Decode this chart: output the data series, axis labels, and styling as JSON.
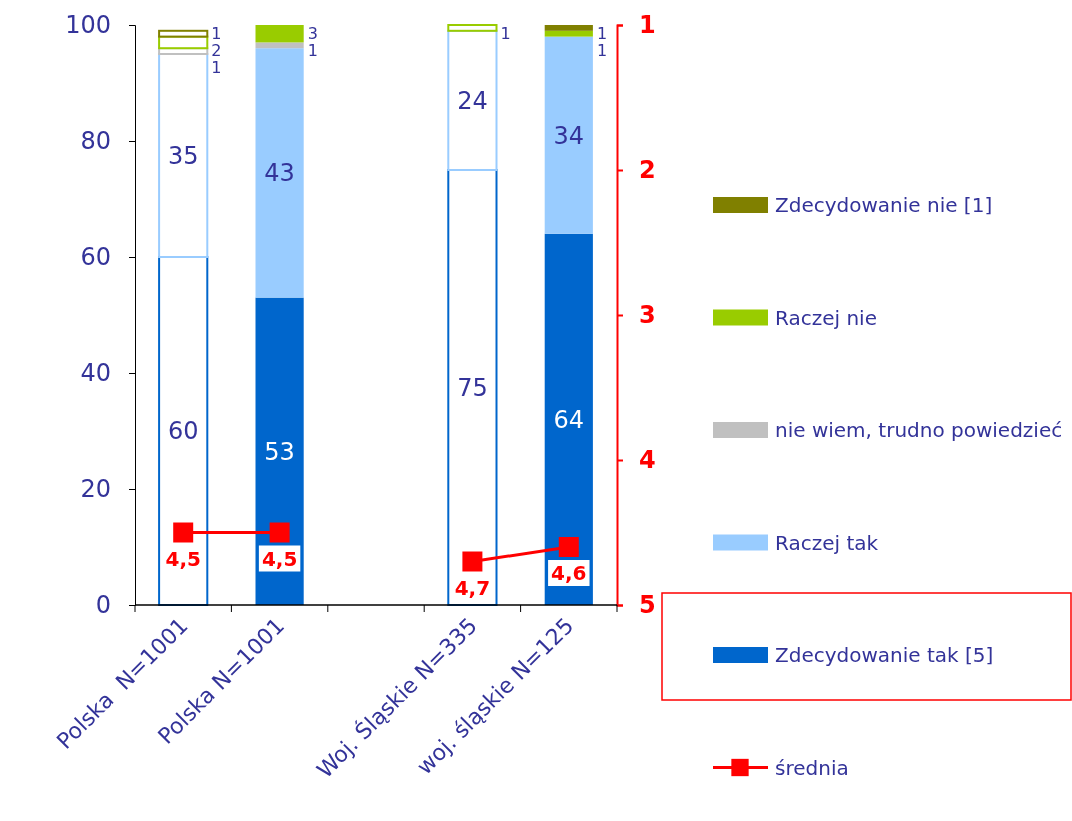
{
  "chart_data": {
    "type": "bar",
    "stacked": true,
    "categories": [
      "Polska  N=1001",
      "Polska N=1001",
      null,
      "Woj. Śląskie N=335",
      "woj. śląskie N=125"
    ],
    "series": [
      {
        "name": "Zdecydowanie tak [5]",
        "color": "#0066cc",
        "colors": [
          "#ffffff",
          "#0066cc",
          null,
          "#ffffff",
          "#0066cc"
        ],
        "values": [
          60,
          53,
          null,
          75,
          64
        ],
        "value_labels": [
          "60",
          "53",
          null,
          "75",
          "64"
        ]
      },
      {
        "name": "Raczej tak",
        "color": "#99ccff",
        "colors": [
          "#ffffff",
          "#99ccff",
          null,
          "#ffffff",
          "#99ccff"
        ],
        "values": [
          35,
          43,
          null,
          24,
          34
        ],
        "value_labels": [
          "35",
          "43",
          null,
          "24",
          "34"
        ]
      },
      {
        "name": "nie wiem, trudno powiedzieć",
        "color": "#c0c0c0",
        "colors": [
          "#ffffff",
          "#c0c0c0",
          null,
          "#ffffff",
          "#c0c0c0"
        ],
        "values": [
          1,
          1,
          null,
          0,
          0
        ],
        "value_labels": [
          "1",
          "1",
          null,
          null,
          null
        ]
      },
      {
        "name": "Raczej nie",
        "color": "#99cc00",
        "colors": [
          "#ffffff",
          "#99cc00",
          null,
          "#ffffff",
          "#99cc00"
        ],
        "values": [
          2,
          3,
          null,
          1,
          1
        ],
        "value_labels": [
          "2",
          "3",
          null,
          "1",
          "1"
        ]
      },
      {
        "name": "Zdecydowanie nie [1]",
        "color": "#808000",
        "colors": [
          "#ffffff",
          "#808000",
          null,
          "#ffffff",
          "#808000"
        ],
        "values": [
          1,
          0,
          null,
          0,
          1
        ],
        "value_labels": [
          "1",
          null,
          null,
          null,
          "1"
        ]
      },
      {
        "name": "średnia",
        "type": "line",
        "axis": "y2",
        "color": "#ff0000",
        "marker": "square",
        "values": [
          4.5,
          4.5,
          null,
          4.7,
          4.6
        ],
        "value_labels": [
          "4,5",
          "4,5",
          null,
          "4,7",
          "4,6"
        ]
      }
    ],
    "ylim": [
      0,
      100
    ],
    "yticks": [
      0,
      20,
      40,
      60,
      80,
      100
    ],
    "y2lim": [
      5,
      1
    ],
    "y2ticks": [
      1,
      2,
      3,
      4,
      5
    ],
    "grid": false,
    "legend": "right"
  }
}
